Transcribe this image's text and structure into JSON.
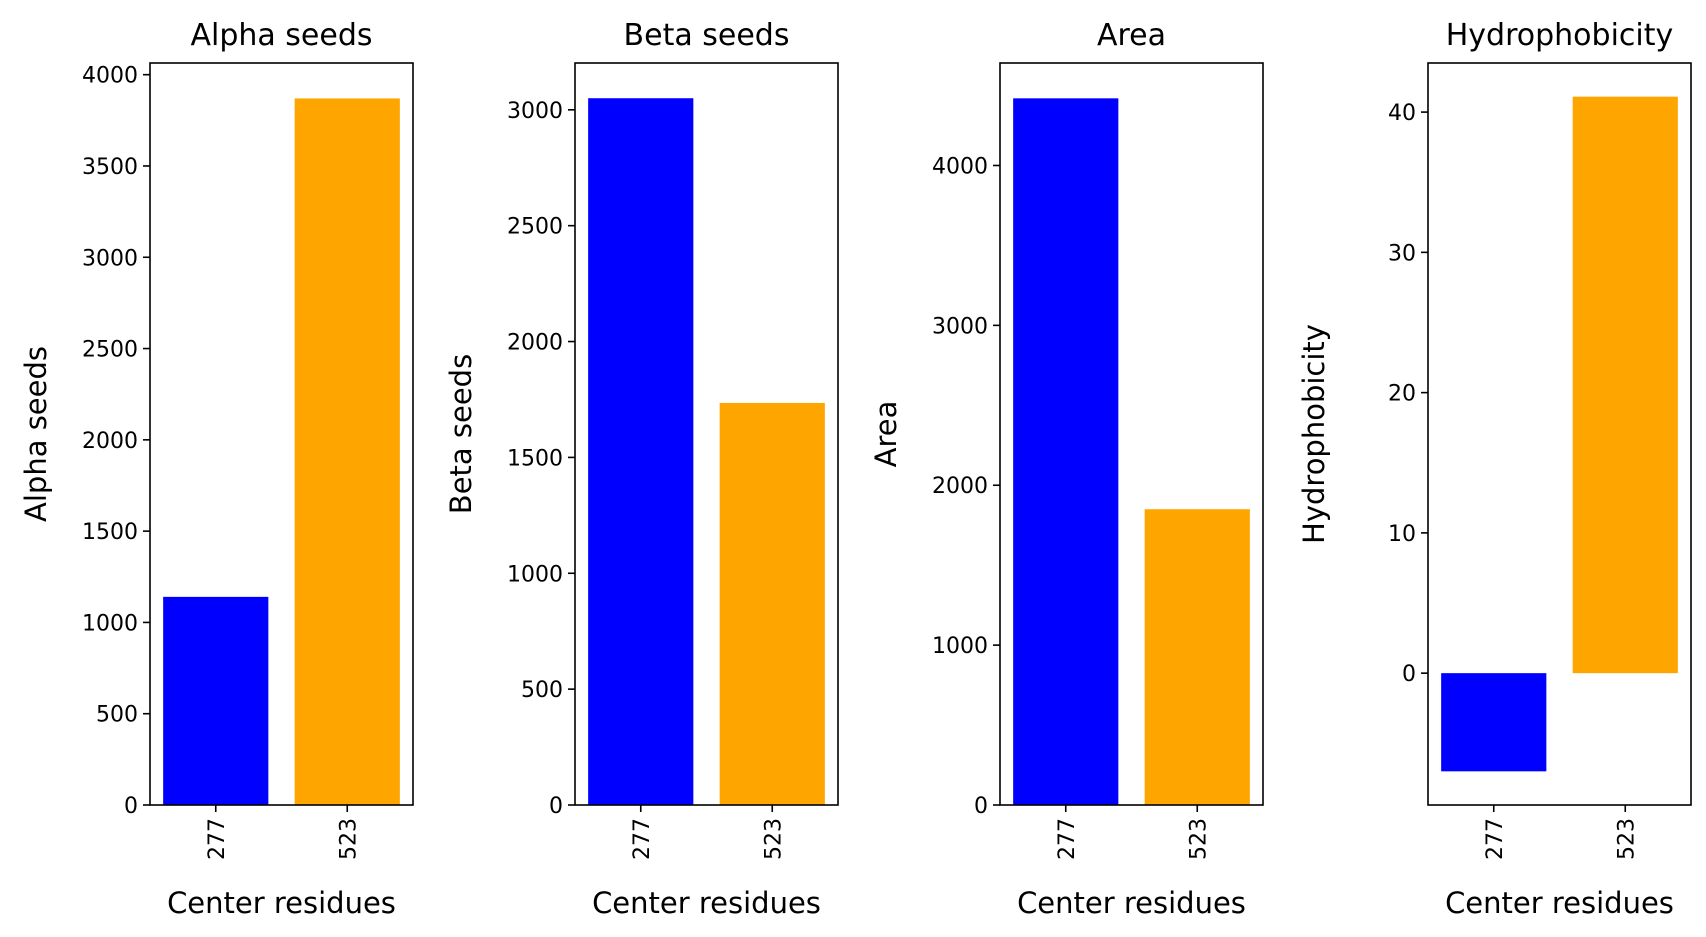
{
  "chart_data": [
    {
      "type": "bar",
      "title": "Alpha seeds",
      "xlabel": "Center residues",
      "ylabel": "Alpha seeds",
      "categories": [
        "277",
        "523"
      ],
      "values": [
        1140,
        3870
      ],
      "colors": [
        "#0000ff",
        "#ffa500"
      ],
      "ylim": [
        0,
        4064
      ],
      "yticks": [
        0,
        500,
        1000,
        1500,
        2000,
        2500,
        3000,
        3500,
        4000
      ],
      "x_tick_rotation": "vertical",
      "grid": false,
      "legend": "none"
    },
    {
      "type": "bar",
      "title": "Beta seeds",
      "xlabel": "Center residues",
      "ylabel": "Beta seeds",
      "categories": [
        "277",
        "523"
      ],
      "values": [
        3050,
        1735
      ],
      "colors": [
        "#0000ff",
        "#ffa500"
      ],
      "ylim": [
        0,
        3202
      ],
      "yticks": [
        0,
        500,
        1000,
        1500,
        2000,
        2500,
        3000
      ],
      "x_tick_rotation": "vertical",
      "grid": false,
      "legend": "none"
    },
    {
      "type": "bar",
      "title": "Area",
      "xlabel": "Center residues",
      "ylabel": "Area",
      "categories": [
        "277",
        "523"
      ],
      "values": [
        4420,
        1850
      ],
      "colors": [
        "#0000ff",
        "#ffa500"
      ],
      "ylim": [
        0,
        4641
      ],
      "yticks": [
        0,
        1000,
        2000,
        3000,
        4000
      ],
      "x_tick_rotation": "vertical",
      "grid": false,
      "legend": "none"
    },
    {
      "type": "bar",
      "title": "Hydrophobicity",
      "xlabel": "Center residues",
      "ylabel": "Hydrophobicity",
      "categories": [
        "277",
        "523"
      ],
      "values": [
        -7,
        41.1
      ],
      "colors": [
        "#0000ff",
        "#ffa500"
      ],
      "ylim": [
        -9.4,
        43.5
      ],
      "yticks": [
        0,
        10,
        20,
        30,
        40
      ],
      "x_tick_rotation": "vertical",
      "grid": false,
      "legend": "none"
    }
  ]
}
